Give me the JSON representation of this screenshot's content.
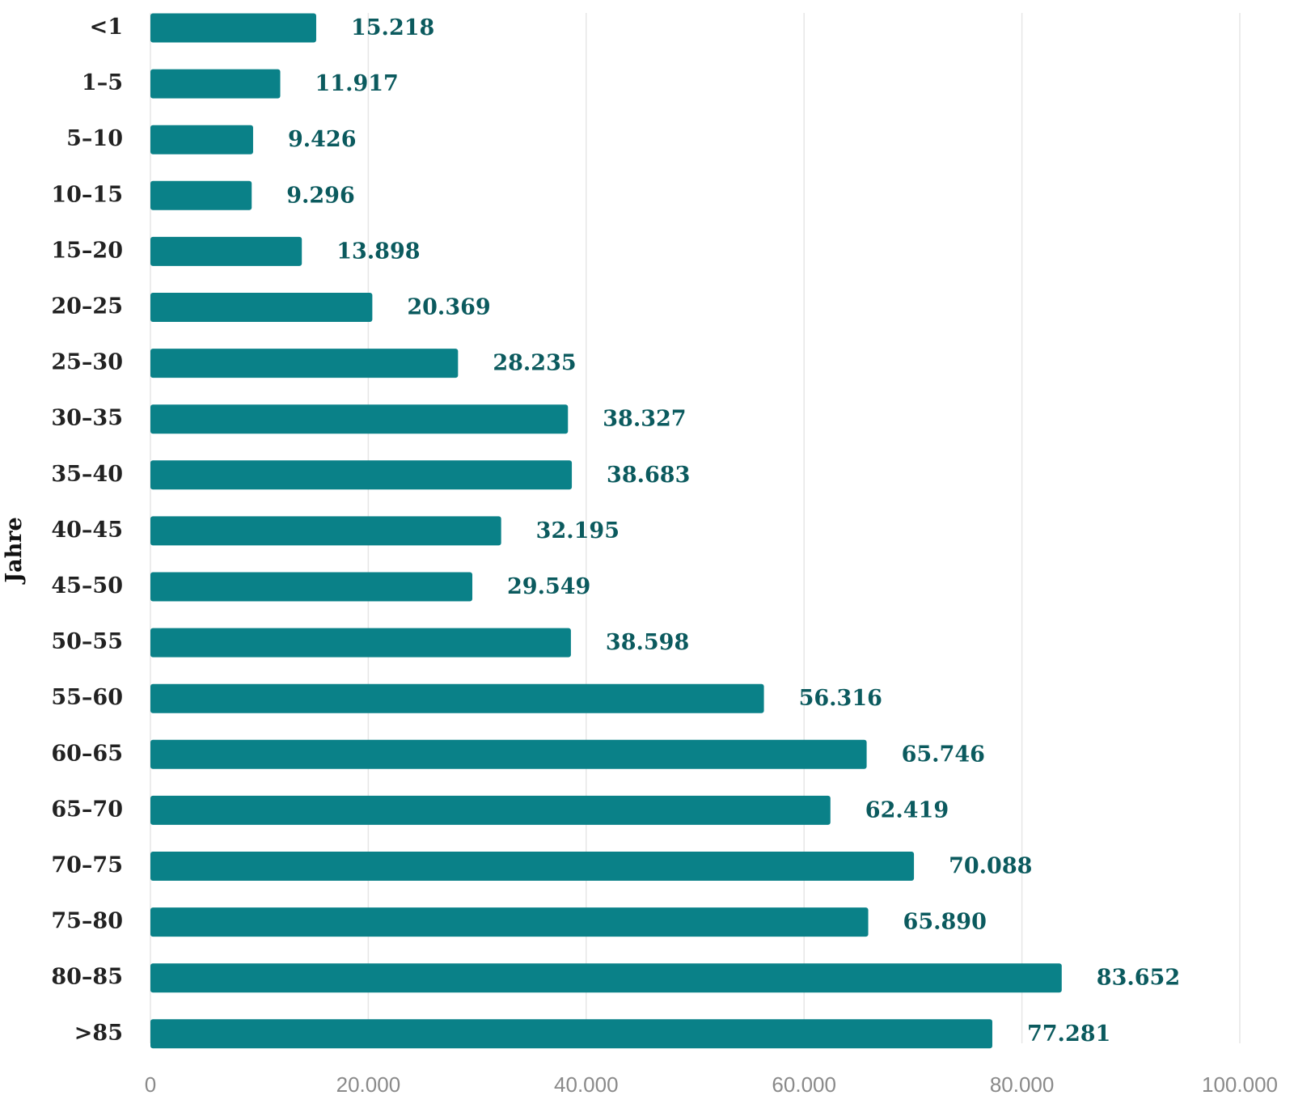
{
  "chart_data": {
    "type": "bar",
    "orientation": "horizontal",
    "ylabel": "Jahre",
    "xlabel": "",
    "categories": [
      "<1",
      "1–5",
      "5–10",
      "10–15",
      "15–20",
      "20–25",
      "25–30",
      "30–35",
      "35–40",
      "40–45",
      "45–50",
      "50–55",
      "55–60",
      "60–65",
      "65–70",
      "70–75",
      "75–80",
      "80–85",
      ">85"
    ],
    "values": [
      15218,
      11917,
      9426,
      9296,
      13898,
      20369,
      28235,
      38327,
      38683,
      32195,
      29549,
      38598,
      56316,
      65746,
      62419,
      70088,
      65890,
      83652,
      77281
    ],
    "value_labels": [
      "15.218",
      "11.917",
      "9.426",
      "9.296",
      "13.898",
      "20.369",
      "28.235",
      "38.327",
      "38.683",
      "32.195",
      "29.549",
      "38.598",
      "56.316",
      "65.746",
      "62.419",
      "70.088",
      "65.890",
      "83.652",
      "77.281"
    ],
    "xlim": [
      0,
      100000
    ],
    "x_ticks": [
      0,
      20000,
      40000,
      60000,
      80000,
      100000
    ],
    "x_tick_labels": [
      "0",
      "20.000",
      "40.000",
      "60.000",
      "80.000",
      "100.000"
    ],
    "grid": "vertical",
    "legend": "none",
    "colors": {
      "bar": "#0a8188",
      "value_label": "#0b5a5e",
      "category_label": "#222222",
      "tick_label": "#8a8a8a",
      "grid": "#e6e6e6"
    }
  }
}
